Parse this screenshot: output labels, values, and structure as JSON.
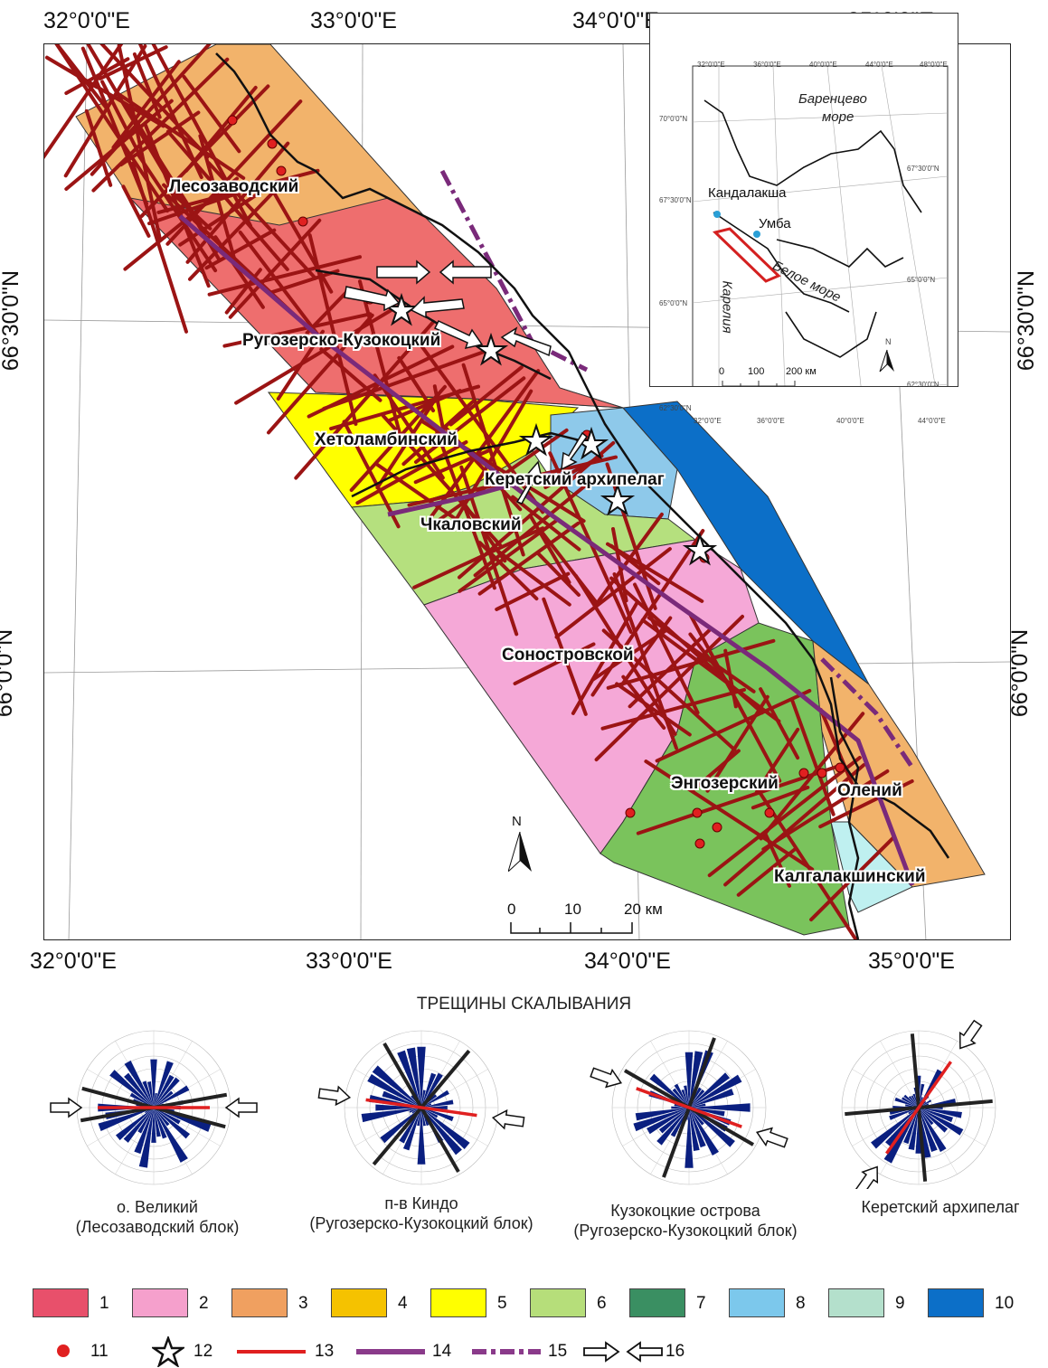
{
  "map": {
    "lon_labels": [
      "32°0'0\"E",
      "33°0'0\"E",
      "34°0'0\"E",
      "35°0'0\"E"
    ],
    "lat_labels": [
      "66°30'0\"N",
      "66°0'0\"N"
    ],
    "blocks": [
      {
        "name": "Лесозаводский",
        "color": "#f2b36b"
      },
      {
        "name": "Ругозерско-Кузокоцкий",
        "color": "#ee6e6e"
      },
      {
        "name": "Хетоламбинский",
        "color": "#ffff00"
      },
      {
        "name": "Керетский архипелаг",
        "color": "#8ec9ea"
      },
      {
        "name": "Чкаловский",
        "color": "#b5e07e"
      },
      {
        "name": "Соностровской",
        "color": "#f5a8d7"
      },
      {
        "name": "Энгозерский",
        "color": "#7ac35c"
      },
      {
        "name": "Олений",
        "color": "#f2b36b"
      },
      {
        "name": "Калгалакшинский",
        "color": "#bff0f0"
      }
    ],
    "north_label": "N",
    "scale": {
      "ticks": [
        "0",
        "10",
        "20 км"
      ]
    }
  },
  "inset": {
    "lon_top": [
      "32°0'0\"E",
      "36°0'0\"E",
      "40°0'0\"E",
      "44°0'0\"E",
      "48°0'0\"E"
    ],
    "lon_bottom": [
      "32°0'0\"E",
      "36°0'0\"E",
      "40°0'0\"E",
      "44°0'0\"E"
    ],
    "lat_left": [
      "70°0'0\"N",
      "67°30'0\"N",
      "65°0'0\"N",
      "62°30'0\"N"
    ],
    "lat_right": [
      "67°30'0\"N",
      "65°0'0\"N",
      "62°30'0\"N"
    ],
    "sea_name": "Баренцево",
    "sea_word": "море",
    "white_sea": "Белое море",
    "kandalaksha": "Кандалакша",
    "umba": "Умба",
    "karelia": "Карелия",
    "north_label": "N",
    "scale": {
      "ticks": [
        "0",
        "100",
        "200 км"
      ]
    }
  },
  "shear": {
    "title": "ТРЕЩИНЫ СКАЛЫВАНИЯ",
    "roses": [
      {
        "caption_1": "о. Великий",
        "caption_2": "(Лесозаводский блок)"
      },
      {
        "caption_1": "п-в Киндо",
        "caption_2": "(Ругозерско-Кузокоцкий блок)"
      },
      {
        "caption_1": "Кузокоцкие острова",
        "caption_2": "(Ругозерско-Кузокоцкий блок)"
      },
      {
        "caption_1": "Керетский архипелаг",
        "caption_2": ""
      }
    ]
  },
  "legend": {
    "boxes": [
      {
        "num": "1",
        "color": "#e8506b"
      },
      {
        "num": "2",
        "color": "#f5a0cc"
      },
      {
        "num": "3",
        "color": "#f0a060"
      },
      {
        "num": "4",
        "color": "#f5c200"
      },
      {
        "num": "5",
        "color": "#ffff00"
      },
      {
        "num": "6",
        "color": "#b6de7a"
      },
      {
        "num": "7",
        "color": "#3a8f62"
      },
      {
        "num": "8",
        "color": "#7cc8ec"
      },
      {
        "num": "9",
        "color": "#b4e0cc"
      },
      {
        "num": "10",
        "color": "#0c6fc8"
      }
    ],
    "symbols": [
      "11",
      "12",
      "13",
      "14",
      "15",
      "16"
    ]
  }
}
